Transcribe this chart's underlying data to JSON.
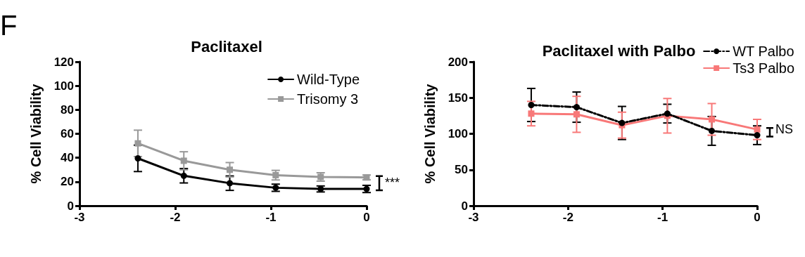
{
  "chart_data": [
    {
      "type": "line",
      "title": "Paclitaxel",
      "ylabel": "% Cell Viability",
      "x": [
        -2.39,
        -1.91,
        -1.43,
        -0.95,
        -0.48,
        0
      ],
      "xlim": [
        -3,
        0
      ],
      "xticks": [
        -3,
        -2,
        -1,
        0
      ],
      "ylim": [
        0,
        120
      ],
      "yticks": [
        0,
        20,
        40,
        60,
        80,
        100,
        120
      ],
      "grid": false,
      "legend": "top right",
      "series": [
        {
          "name": "Wild-Type",
          "color": "#000000",
          "marker": "circle",
          "values": [
            39.5,
            25,
            18.8,
            15,
            14,
            14
          ],
          "errors": [
            11,
            6,
            6,
            3,
            2.5,
            3
          ]
        },
        {
          "name": "Trisomy 3",
          "color": "#999999",
          "marker": "square",
          "values": [
            52,
            37.5,
            30,
            25.5,
            24,
            23.6
          ],
          "errors": [
            11,
            7.5,
            6,
            4,
            3.5,
            2
          ]
        }
      ],
      "annotations": [
        "F",
        {
          "text": "***",
          "x": 0,
          "y": 19
        }
      ]
    },
    {
      "type": "line",
      "title": "Paclitaxel with Palbo",
      "ylabel": "% Cell Viability",
      "x": [
        -2.39,
        -1.91,
        -1.43,
        -0.95,
        -0.48,
        0
      ],
      "xlim": [
        -3,
        0
      ],
      "xticks": [
        -3,
        -2,
        -1,
        0
      ],
      "ylim": [
        0,
        200
      ],
      "yticks": [
        0,
        50,
        100,
        150,
        200
      ],
      "grid": false,
      "legend": "top right",
      "series": [
        {
          "name": "WT Palbo",
          "color": "#000000",
          "marker": "circle",
          "line_style": "dashed",
          "values": [
            140,
            137,
            115,
            128,
            104,
            98
          ],
          "errors": [
            23,
            21,
            23,
            13,
            20,
            13
          ]
        },
        {
          "name": "Ts3 Palbo",
          "color": "#f87878",
          "marker": "square",
          "line_style": "solid",
          "values": [
            128,
            127,
            112,
            125,
            120,
            106
          ],
          "errors": [
            17,
            25,
            18,
            24,
            22,
            14
          ]
        }
      ],
      "annotations": [
        {
          "text": "NS",
          "x": 0,
          "y": 105
        }
      ]
    }
  ]
}
